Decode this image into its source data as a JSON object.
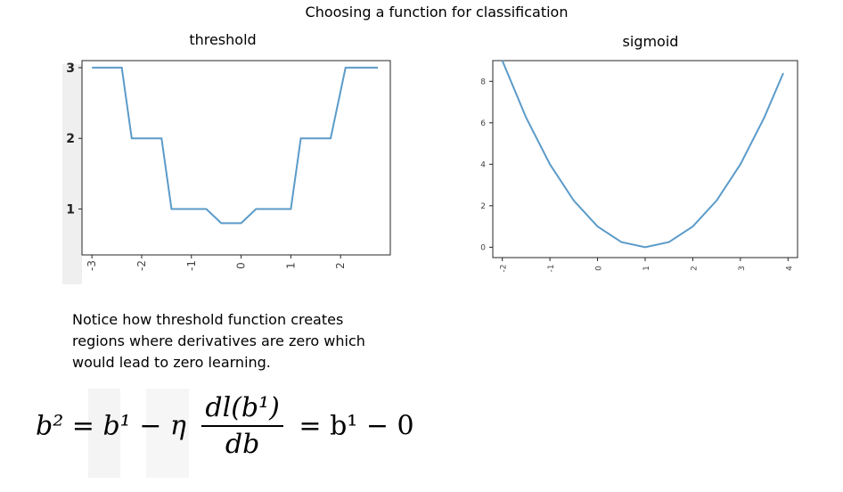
{
  "page": {
    "title": "Choosing a function for classification",
    "note": "Notice how threshold function creates regions where derivatives are zero which would lead to zero learning."
  },
  "formula": {
    "lhs": "b² = b¹ − η",
    "numerator": "dl(b¹)",
    "denominator": "db",
    "rhs": "= b¹ − 0"
  },
  "colors": {
    "line": "#5b9bc9",
    "axis": "#262626",
    "label": "#444444"
  },
  "chart_data": [
    {
      "type": "line",
      "title": "threshold",
      "xlim": [
        -3.2,
        3.0
      ],
      "ylim": [
        0.35,
        3.1
      ],
      "xticks": [
        -3,
        -2,
        -1,
        0,
        1,
        2
      ],
      "yticks": [
        1,
        2,
        3
      ],
      "series": [
        {
          "x": [
            -3.0,
            -2.4,
            -2.2,
            -1.6,
            -1.4,
            -0.7,
            -0.4,
            0.0,
            0.3,
            1.0,
            1.2,
            1.8,
            2.1,
            2.75
          ],
          "y": [
            3,
            3,
            2,
            2,
            1,
            1,
            0.8,
            0.8,
            1,
            1,
            2,
            2,
            3,
            3
          ]
        }
      ]
    },
    {
      "type": "line",
      "title": "sigmoid",
      "xlim": [
        -2.2,
        4.2
      ],
      "ylim": [
        -0.5,
        9.0
      ],
      "xticks": [
        -2,
        -1,
        0,
        1,
        2,
        3,
        4
      ],
      "yticks": [
        0,
        2,
        4,
        6,
        8
      ],
      "series": [
        {
          "x": [
            -2.0,
            -1.5,
            -1.0,
            -0.5,
            0.0,
            0.5,
            1.0,
            1.5,
            2.0,
            2.5,
            3.0,
            3.5,
            3.9
          ],
          "y": [
            9.0,
            6.25,
            4.0,
            2.25,
            1.0,
            0.25,
            0.0,
            0.25,
            1.0,
            2.25,
            4.0,
            6.25,
            8.4
          ]
        }
      ]
    }
  ]
}
